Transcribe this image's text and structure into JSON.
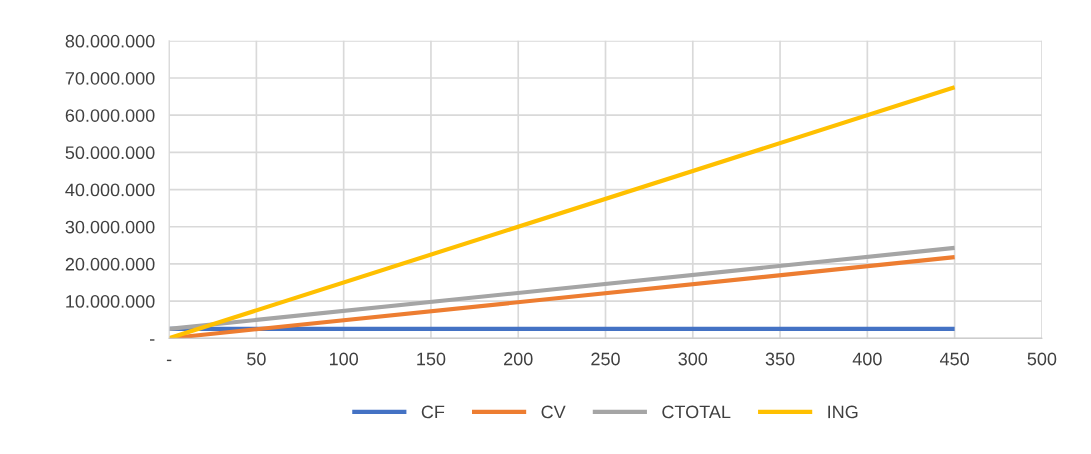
{
  "chart_data": {
    "type": "line",
    "xlim": [
      0,
      500
    ],
    "xticks": [
      {
        "value": 0,
        "label": "-"
      },
      50,
      100,
      150,
      200,
      250,
      300,
      350,
      400,
      450,
      500
    ],
    "ylim": [
      0,
      80000000
    ],
    "yticks": [
      {
        "value": 0,
        "label": "-"
      },
      {
        "value": 10000000,
        "label": "10.000.000"
      },
      {
        "value": 20000000,
        "label": "20.000.000"
      },
      {
        "value": 30000000,
        "label": "30.000.000"
      },
      {
        "value": 40000000,
        "label": "40.000.000"
      },
      {
        "value": 50000000,
        "label": "50.000.000"
      },
      {
        "value": 60000000,
        "label": "60.000.000"
      },
      {
        "value": 70000000,
        "label": "70.000.000"
      },
      {
        "value": 80000000,
        "label": "80.000.000"
      }
    ],
    "grid": true,
    "legend": "bottom",
    "marker": "none",
    "line_style": "solid",
    "x": [
      0,
      450
    ],
    "series": [
      {
        "name": "CF",
        "color": "#4472c4",
        "values": [
          2500000,
          2500000
        ]
      },
      {
        "name": "CV",
        "color": "#ed7d31",
        "values": [
          0,
          21800000
        ]
      },
      {
        "name": "CTOTAL",
        "color": "#a5a5a5",
        "values": [
          2500000,
          24300000
        ]
      },
      {
        "name": "ING",
        "color": "#ffc000",
        "values": [
          0,
          67500000
        ]
      }
    ]
  }
}
